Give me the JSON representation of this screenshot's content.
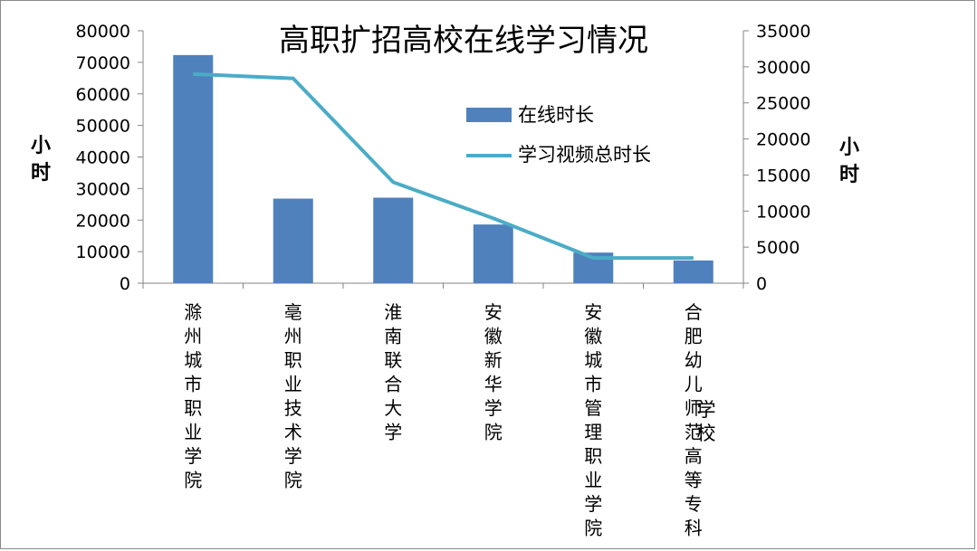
{
  "chart_data": {
    "type": "bar+line",
    "title": "高职扩招高校在线学习情况",
    "categories": [
      "滁州城市职业学院",
      "亳州职业技术学院",
      "淮南联合大学",
      "安徽新华学院",
      "安徽城市管理职业学院",
      "合肥幼儿师范高等专科"
    ],
    "series": [
      {
        "name": "在线时长",
        "kind": "bar",
        "axis": "left",
        "color": "#4F81BD",
        "values": [
          72300,
          26800,
          27100,
          18600,
          9700,
          7200
        ]
      },
      {
        "name": "学习视频总时长",
        "kind": "line",
        "axis": "right",
        "color": "#4BACC6",
        "values": [
          29000,
          28400,
          14000,
          9000,
          3500,
          3500
        ]
      }
    ],
    "y_left": {
      "label": "小时",
      "min": 0,
      "max": 80000,
      "step": 10000,
      "ticks": [
        "0",
        "10000",
        "20000",
        "30000",
        "40000",
        "50000",
        "60000",
        "70000",
        "80000"
      ]
    },
    "y_right": {
      "label": "小时",
      "min": 0,
      "max": 35000,
      "step": 5000,
      "ticks": [
        "0",
        "5000",
        "10000",
        "15000",
        "20000",
        "25000",
        "30000",
        "35000"
      ]
    },
    "xlabel": "学校",
    "legend_position": "upper-right inside plot",
    "grid": false
  }
}
